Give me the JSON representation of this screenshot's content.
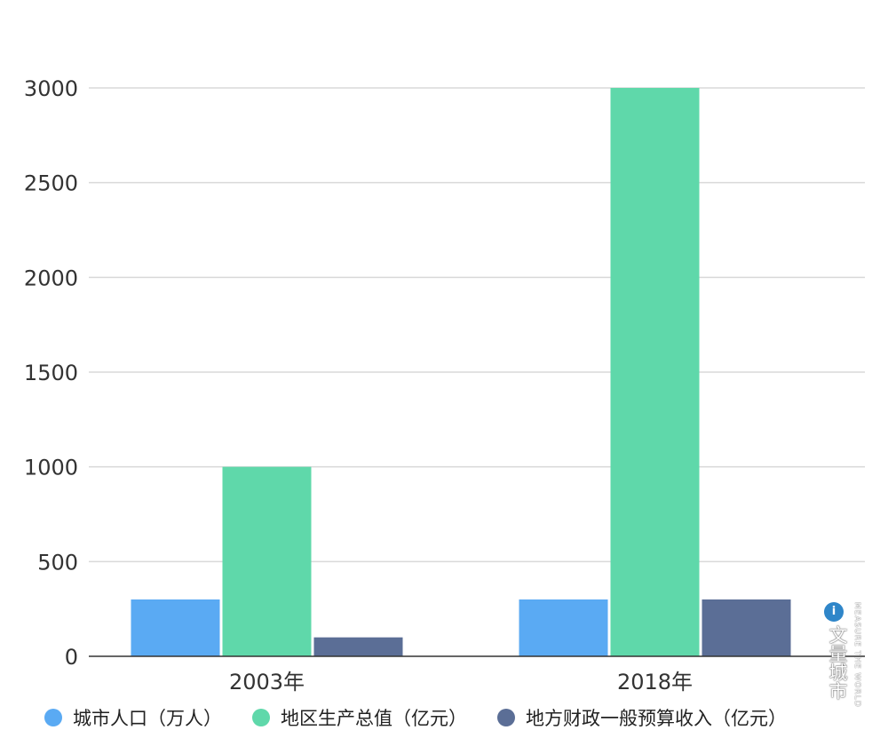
{
  "chart_data": {
    "type": "bar",
    "categories": [
      "2003年",
      "2018年"
    ],
    "series": [
      {
        "name": "城市人口（万人）",
        "values": [
          300,
          300
        ],
        "color": "#5aaaf3"
      },
      {
        "name": "地区生产总值（亿元）",
        "values": [
          1000,
          3000
        ],
        "color": "#5fd8aa"
      },
      {
        "name": "地方财政一般预算收入（亿元）",
        "values": [
          100,
          300
        ],
        "color": "#5b6e96"
      }
    ],
    "yticks": [
      "0",
      "500",
      "1000",
      "1500",
      "2000",
      "2500",
      "3000"
    ],
    "ylim": [
      0,
      3000
    ],
    "grid": true,
    "legend_position": "bottom"
  },
  "watermark": {
    "logo": "i",
    "text": "文量城市",
    "vertical": "MEASURE THE WORLD"
  }
}
